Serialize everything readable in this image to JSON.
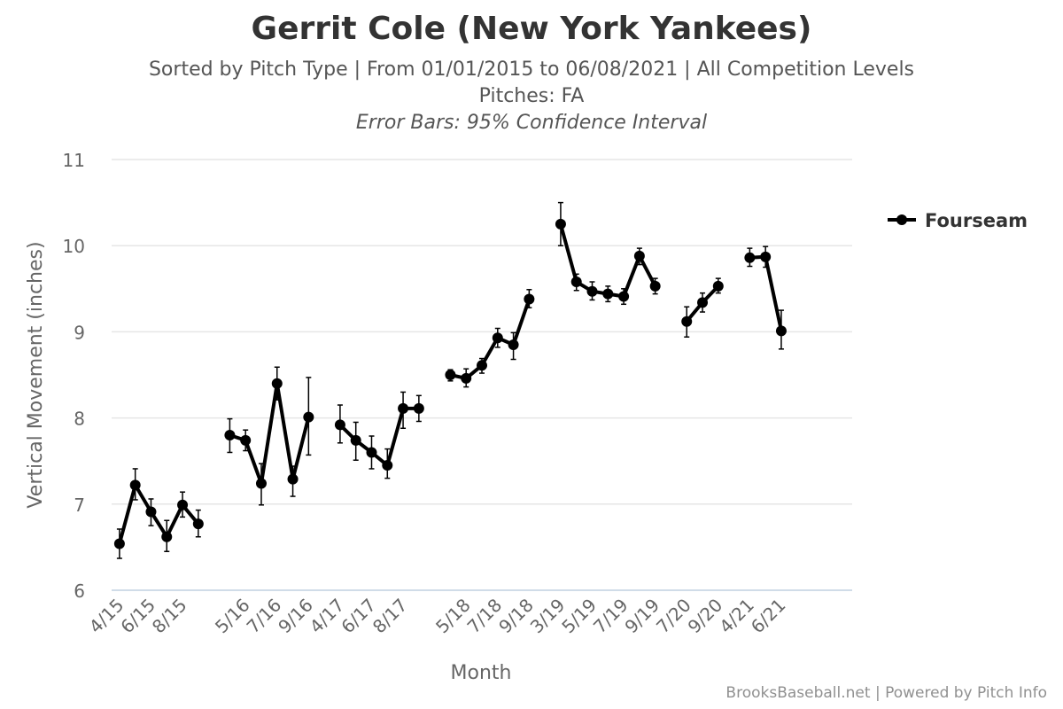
{
  "chart_data": {
    "type": "line",
    "title": "Gerrit Cole (New York Yankees)",
    "subtitle_1": "Sorted by Pitch Type | From 01/01/2015 to 06/08/2021 | All Competition Levels",
    "subtitle_2": "Pitches: FA",
    "subtitle_3": "Error Bars: 95% Confidence Interval",
    "xlabel": "Month",
    "ylabel": "Vertical Movement (inches)",
    "ylim": [
      6,
      11
    ],
    "yticks": [
      6,
      7,
      8,
      9,
      10,
      11
    ],
    "grid": true,
    "legend_position": "right",
    "color": "#000000",
    "x_tick_labels": [
      "4/15",
      "6/15",
      "8/15",
      "5/16",
      "7/16",
      "9/16",
      "4/17",
      "6/17",
      "8/17",
      "5/18",
      "7/18",
      "9/18",
      "3/19",
      "5/19",
      "7/19",
      "9/19",
      "7/20",
      "9/20",
      "4/21",
      "6/21"
    ],
    "series": [
      {
        "name": "Fourseam",
        "segments": [
          {
            "x": [
              "4/15",
              "5/15",
              "6/15",
              "7/15",
              "8/15",
              "9/15"
            ],
            "y": [
              6.54,
              7.22,
              6.91,
              6.62,
              6.99,
              6.77
            ],
            "lo": [
              6.37,
              7.05,
              6.75,
              6.45,
              6.85,
              6.62
            ],
            "hi": [
              6.71,
              7.41,
              7.06,
              6.81,
              7.14,
              6.93
            ]
          },
          {
            "x": [
              "4/16",
              "5/16",
              "6/16",
              "7/16",
              "8/16",
              "9/16"
            ],
            "y": [
              7.8,
              7.74,
              7.24,
              8.4,
              7.29,
              8.01
            ],
            "lo": [
              7.6,
              7.62,
              6.99,
              8.21,
              7.09,
              7.57
            ],
            "hi": [
              7.99,
              7.86,
              7.47,
              8.59,
              7.44,
              8.47
            ]
          },
          {
            "x": [
              "4/17",
              "5/17",
              "6/17",
              "7/17",
              "8/17",
              "9/17"
            ],
            "y": [
              7.92,
              7.74,
              7.6,
              7.45,
              8.11,
              8.11
            ],
            "lo": [
              7.71,
              7.51,
              7.41,
              7.3,
              7.88,
              7.96
            ],
            "hi": [
              8.15,
              7.95,
              7.79,
              7.64,
              8.3,
              8.26
            ]
          },
          {
            "x": [
              "4/18",
              "5/18",
              "6/18",
              "7/18",
              "8/18",
              "9/18"
            ],
            "y": [
              8.5,
              8.46,
              8.61,
              8.93,
              8.85,
              9.38
            ],
            "lo": [
              8.43,
              8.36,
              8.52,
              8.82,
              8.68,
              9.28
            ],
            "hi": [
              8.56,
              8.57,
              8.69,
              9.04,
              8.99,
              9.49
            ]
          },
          {
            "x": [
              "3/19",
              "4/19",
              "5/19",
              "6/19",
              "7/19",
              "8/19",
              "9/19"
            ],
            "y": [
              10.25,
              9.58,
              9.47,
              9.44,
              9.41,
              9.88,
              9.53
            ],
            "lo": [
              10.0,
              9.48,
              9.37,
              9.35,
              9.32,
              9.78,
              9.44
            ],
            "hi": [
              10.5,
              9.67,
              9.58,
              9.53,
              9.5,
              9.97,
              9.62
            ]
          },
          {
            "x": [
              "7/20",
              "8/20",
              "9/20"
            ],
            "y": [
              9.12,
              9.34,
              9.53
            ],
            "lo": [
              8.94,
              9.23,
              9.45
            ],
            "hi": [
              9.29,
              9.45,
              9.62
            ]
          },
          {
            "x": [
              "4/21",
              "5/21",
              "6/21"
            ],
            "y": [
              9.86,
              9.87,
              9.01
            ],
            "lo": [
              9.76,
              9.75,
              8.8
            ],
            "hi": [
              9.97,
              9.99,
              9.25
            ]
          }
        ]
      }
    ]
  },
  "footer": {
    "credit": "BrooksBaseball.net | Powered by Pitch Info"
  }
}
